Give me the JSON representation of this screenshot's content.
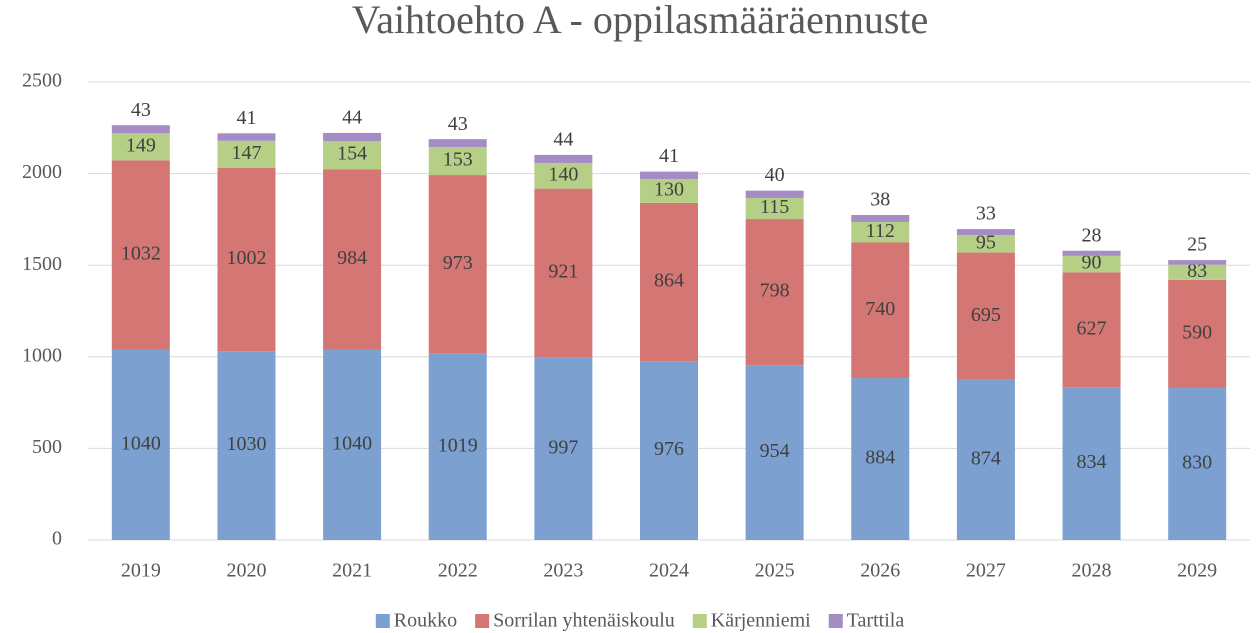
{
  "chart_data": {
    "type": "stacked_bar",
    "title": "Vaihtoehto A - oppilasmääräennuste",
    "categories": [
      "2019",
      "2020",
      "2021",
      "2022",
      "2023",
      "2024",
      "2025",
      "2026",
      "2027",
      "2028",
      "2029"
    ],
    "series": [
      {
        "name": "Roukko",
        "color": "#7ca1d1",
        "values": [
          1040,
          1030,
          1040,
          1019,
          997,
          976,
          954,
          884,
          874,
          834,
          830
        ]
      },
      {
        "name": "Sorrilan yhtenäiskoulu",
        "color": "#d47673",
        "values": [
          1032,
          1002,
          984,
          973,
          921,
          864,
          798,
          740,
          695,
          627,
          590
        ]
      },
      {
        "name": "Kärjenniemi",
        "color": "#b6cf86",
        "values": [
          149,
          147,
          154,
          153,
          140,
          130,
          115,
          112,
          95,
          90,
          83
        ]
      },
      {
        "name": "Tarttila",
        "color": "#a58cc4",
        "values": [
          43,
          41,
          44,
          43,
          44,
          41,
          40,
          38,
          33,
          28,
          25
        ]
      }
    ],
    "ylim": [
      0,
      2500
    ],
    "yticks": [
      0,
      500,
      1000,
      1500,
      2000,
      2500
    ],
    "grid": true,
    "legend": "bottom"
  }
}
